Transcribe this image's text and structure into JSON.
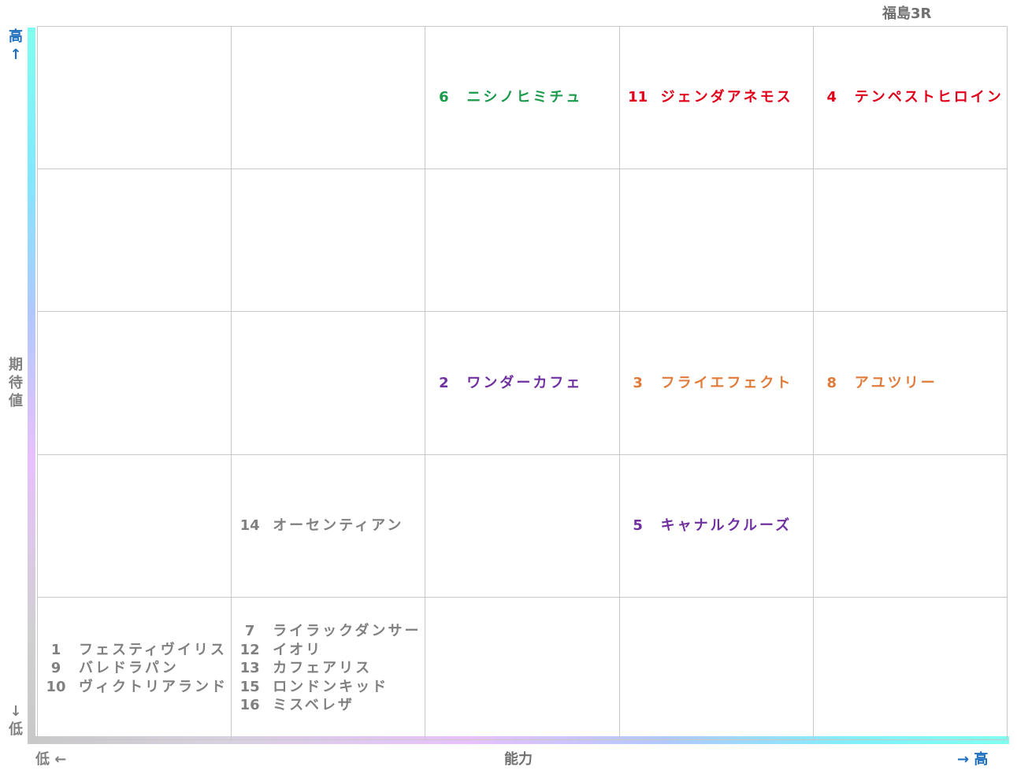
{
  "title": "福島3R",
  "y_axis": {
    "label": "期待値",
    "high": "高↑",
    "low": "↓低"
  },
  "x_axis": {
    "label": "能力",
    "low": "低 ←",
    "high": "→ 高"
  },
  "colors": {
    "green": "#1a9a4a",
    "red": "#e0001a",
    "purple": "#7030a0",
    "orange": "#e07b39",
    "grey": "#808080"
  },
  "grid": {
    "rows": [
      [
        [],
        [],
        [
          {
            "number": 6,
            "name": "ニシノヒミチュ",
            "color": "green"
          }
        ],
        [
          {
            "number": 11,
            "name": "ジェンダアネモス",
            "color": "red"
          }
        ],
        [
          {
            "number": 4,
            "name": "テンペストヒロイン",
            "color": "red"
          }
        ]
      ],
      [
        [],
        [],
        [],
        [],
        []
      ],
      [
        [],
        [],
        [
          {
            "number": 2,
            "name": "ワンダーカフェ",
            "color": "purple"
          }
        ],
        [
          {
            "number": 3,
            "name": "フライエフェクト",
            "color": "orange"
          }
        ],
        [
          {
            "number": 8,
            "name": "アユツリー",
            "color": "orange"
          }
        ]
      ],
      [
        [],
        [
          {
            "number": 14,
            "name": "オーセンティアン",
            "color": "grey"
          }
        ],
        [],
        [
          {
            "number": 5,
            "name": "キャナルクルーズ",
            "color": "purple"
          }
        ],
        []
      ],
      [
        [
          {
            "number": 1,
            "name": "フェスティヴイリス",
            "color": "grey"
          },
          {
            "number": 9,
            "name": "バレドラパン",
            "color": "grey"
          },
          {
            "number": 10,
            "name": "ヴィクトリアランド",
            "color": "grey"
          }
        ],
        [
          {
            "number": 7,
            "name": "ライラックダンサー",
            "color": "grey"
          },
          {
            "number": 12,
            "name": "イオリ",
            "color": "grey"
          },
          {
            "number": 13,
            "name": "カフェアリス",
            "color": "grey"
          },
          {
            "number": 15,
            "name": "ロンドンキッド",
            "color": "grey"
          },
          {
            "number": 16,
            "name": "ミスベレザ",
            "color": "grey"
          }
        ],
        [],
        [],
        []
      ]
    ]
  }
}
